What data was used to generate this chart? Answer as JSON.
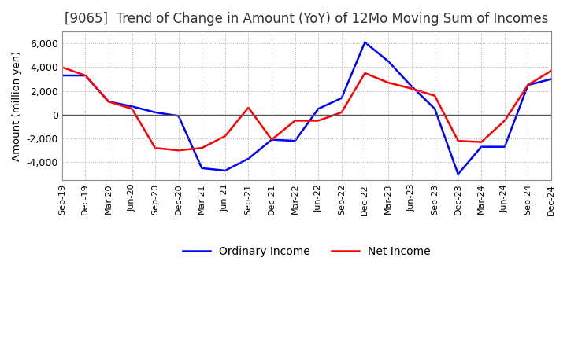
{
  "title": "[9065]  Trend of Change in Amount (YoY) of 12Mo Moving Sum of Incomes",
  "ylabel": "Amount (million yen)",
  "x_labels": [
    "Sep-19",
    "Dec-19",
    "Mar-20",
    "Jun-20",
    "Sep-20",
    "Dec-20",
    "Mar-21",
    "Jun-21",
    "Sep-21",
    "Dec-21",
    "Mar-22",
    "Jun-22",
    "Sep-22",
    "Dec-22",
    "Mar-23",
    "Jun-23",
    "Sep-23",
    "Dec-23",
    "Mar-24",
    "Jun-24",
    "Sep-24",
    "Dec-24"
  ],
  "ordinary_income": [
    3300,
    3300,
    1100,
    700,
    200,
    -100,
    -4500,
    -4700,
    -3700,
    -2100,
    -2200,
    500,
    1400,
    6100,
    4500,
    2400,
    500,
    -5000,
    -2700,
    -2700,
    2500,
    3000
  ],
  "net_income": [
    4000,
    3300,
    1100,
    500,
    -2800,
    -3000,
    -2800,
    -1800,
    600,
    -2100,
    -500,
    -500,
    200,
    3500,
    2700,
    2200,
    1600,
    -2200,
    -2300,
    -500,
    2500,
    3700
  ],
  "ordinary_color": "#0000ff",
  "net_color": "#ff0000",
  "ylim": [
    -5500,
    7000
  ],
  "yticks": [
    -4000,
    -2000,
    0,
    2000,
    4000,
    6000
  ],
  "background_color": "#ffffff",
  "grid_color": "#aaaaaa",
  "title_fontsize": 12,
  "legend_labels": [
    "Ordinary Income",
    "Net Income"
  ]
}
